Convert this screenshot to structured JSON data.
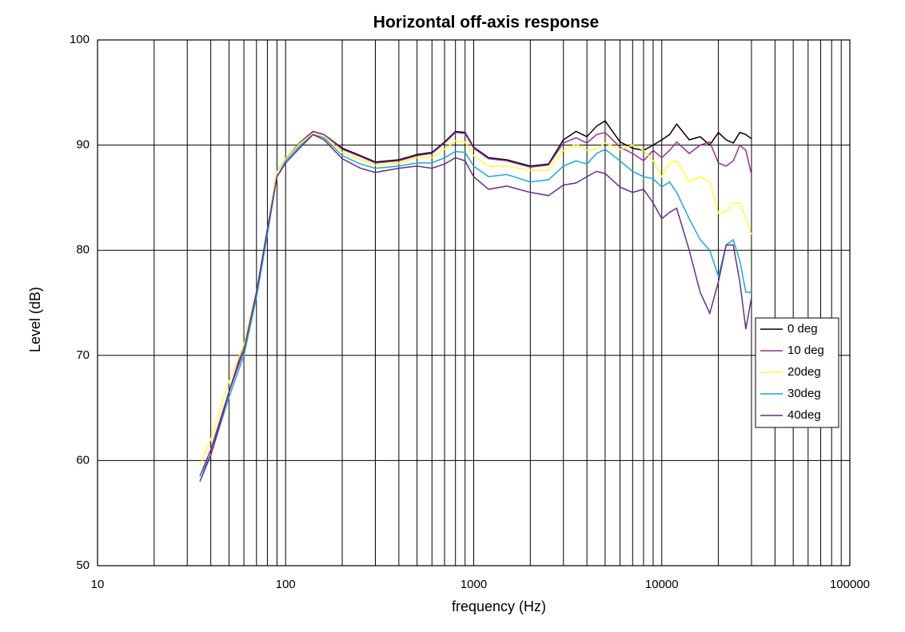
{
  "chart_data": {
    "type": "line",
    "title": "Horizontal off-axis response",
    "x_label": "frequency (Hz)",
    "y_label": "Level (dB)",
    "x_scale": "log",
    "xlim": [
      10,
      100000
    ],
    "xticks": [
      10,
      100,
      1000,
      10000,
      100000
    ],
    "ylim": [
      50,
      100
    ],
    "yticks": [
      50,
      60,
      70,
      80,
      90,
      100
    ],
    "grid": true,
    "legend": "right",
    "x": [
      35,
      40,
      50,
      60,
      70,
      80,
      90,
      100,
      120,
      140,
      160,
      200,
      250,
      300,
      400,
      500,
      600,
      700,
      800,
      900,
      1000,
      1200,
      1500,
      2000,
      2500,
      3000,
      3500,
      4000,
      4500,
      5000,
      6000,
      7000,
      8000,
      9000,
      10000,
      11000,
      12000,
      14000,
      16000,
      18000,
      20000,
      22000,
      24000,
      26000,
      28000,
      30000
    ],
    "series": [
      {
        "name": "0 deg",
        "color": "#000000",
        "values": [
          58.5,
          61,
          66.5,
          71,
          76,
          82,
          87.5,
          88.7,
          90.3,
          91.3,
          91,
          89.7,
          89,
          88.4,
          88.6,
          89.1,
          89.3,
          90.3,
          91.3,
          91.2,
          89.8,
          88.8,
          88.6,
          88,
          88.2,
          90.5,
          91.3,
          90.8,
          91.8,
          92.3,
          90.3,
          89.7,
          89.5,
          90,
          90.5,
          91,
          92,
          90.5,
          90.8,
          90,
          91.2,
          90.5,
          90.2,
          91.2,
          91,
          90.6
        ]
      },
      {
        "name": "10 deg",
        "color": "#9b2f8f",
        "values": [
          58.5,
          61,
          66.5,
          71,
          76,
          82,
          87.5,
          88.7,
          90.3,
          91.3,
          91,
          89.6,
          88.9,
          88.3,
          88.5,
          89,
          89.2,
          90.2,
          91.2,
          91.1,
          89.7,
          88.7,
          88.5,
          87.9,
          88.1,
          90.2,
          90.7,
          90.2,
          91,
          91.2,
          89.8,
          89.2,
          88.5,
          89.5,
          88.8,
          89.5,
          90.3,
          89.2,
          90,
          90.3,
          88.3,
          88,
          88.5,
          90,
          89.5,
          87.2
        ]
      },
      {
        "name": "20deg",
        "color": "#ffff33",
        "values": [
          59.5,
          62,
          67.5,
          71,
          76,
          82,
          87.5,
          88.7,
          90.2,
          91.1,
          90.8,
          89.3,
          88.6,
          88.1,
          88.3,
          88.8,
          88.8,
          89.6,
          90.4,
          90.3,
          89,
          88,
          88,
          87.6,
          87.6,
          89.5,
          90.1,
          89.5,
          89.6,
          90.2,
          89.6,
          90,
          89.5,
          88.5,
          87,
          88.3,
          88.5,
          86.5,
          87,
          86.5,
          83.5,
          83.7,
          84.5,
          84.5,
          83,
          81.5
        ]
      },
      {
        "name": "30deg",
        "color": "#18a8dd",
        "values": [
          58.5,
          60.5,
          66,
          70,
          75.5,
          81.5,
          87,
          88.5,
          90,
          91,
          90.7,
          89,
          88.2,
          87.8,
          88,
          88.3,
          88.3,
          88.8,
          89.4,
          89.3,
          88,
          87,
          87.2,
          86.5,
          86.7,
          88,
          88.5,
          88.2,
          89.2,
          89.6,
          88.5,
          87.5,
          87,
          86.8,
          86,
          86.5,
          85.5,
          83,
          81,
          80,
          77.5,
          80.5,
          81,
          79,
          76,
          76
        ]
      },
      {
        "name": "40deg",
        "color": "#662f87",
        "values": [
          58,
          60.5,
          66.5,
          70.5,
          76,
          82,
          87,
          88.3,
          89.8,
          91,
          90.5,
          88.7,
          87.8,
          87.4,
          87.8,
          88,
          87.8,
          88.2,
          88.8,
          88.5,
          87,
          85.8,
          86.1,
          85.5,
          85.2,
          86.2,
          86.4,
          87,
          87.5,
          87.3,
          86,
          85.5,
          85.8,
          84.5,
          83,
          83.6,
          84,
          80,
          76,
          74,
          77,
          80.5,
          80.5,
          77,
          72.5,
          75.5
        ]
      }
    ]
  }
}
